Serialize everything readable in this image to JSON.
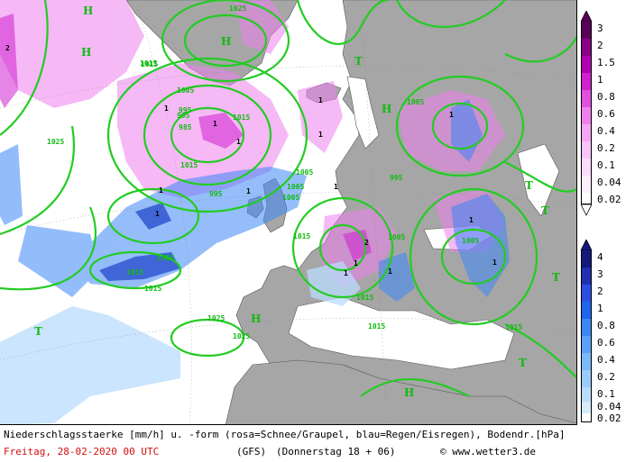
{
  "map": {
    "isobar_labels": [
      "1025",
      "1015",
      "1005",
      "995",
      "985",
      "1025",
      "1015",
      "1005",
      "995",
      "1005",
      "1015",
      "1005",
      "1005",
      "995",
      "1015",
      "1025",
      "1015",
      "1015",
      "1005",
      "1005",
      "1015",
      "1015",
      "995",
      "1015",
      "1025",
      "1025",
      "1015"
    ],
    "high_symbol": "H",
    "low_symbol": "T",
    "precip_labels": [
      "1",
      "1",
      "1",
      "1",
      "1",
      "1",
      "1",
      "1",
      "1",
      "1",
      "1",
      "1",
      "2",
      "1",
      "1",
      "1",
      "2"
    ]
  },
  "legend_snow": {
    "ticks": [
      "3",
      "2",
      "1.5",
      "1",
      "0.8",
      "0.6",
      "0.4",
      "0.2",
      "0.1",
      "0.04",
      "0.02"
    ],
    "colors": [
      "#5a0058",
      "#8a0088",
      "#b000b0",
      "#d020d0",
      "#e050e0",
      "#ee80ee",
      "#f3a6f3",
      "#f7c4f7",
      "#fadcfa",
      "#fdeefd",
      "#ffffff"
    ]
  },
  "legend_rain": {
    "ticks": [
      "4",
      "3",
      "2",
      "1",
      "0.8",
      "0.6",
      "0.4",
      "0.2",
      "0.1",
      "0.04",
      "0.02"
    ],
    "colors": [
      "#141a7a",
      "#2030b0",
      "#2c4ee0",
      "#1c66f0",
      "#3c86f6",
      "#5aa0f8",
      "#7cb8fa",
      "#9acbfb",
      "#b8dcfc",
      "#d4ebfd",
      "#ffffff"
    ]
  },
  "footer": {
    "line1": "Niederschlagsstaerke [mm/h] u. -form (rosa=Schnee/Graupel, blau=Regen/Eisregen), Bodendr.[hPa]",
    "date": "Freitag, 28-02-2020  00 UTC",
    "model": "(GFS)",
    "run": "(Donnerstag 18 + 06)",
    "credit": "© www.wetter3.de"
  },
  "colors": {
    "isobar": "#22cc22",
    "land": "#a6a6a6",
    "sea": "#ffffff",
    "snow": "#ee80ee",
    "rain": "#3c86f6"
  }
}
